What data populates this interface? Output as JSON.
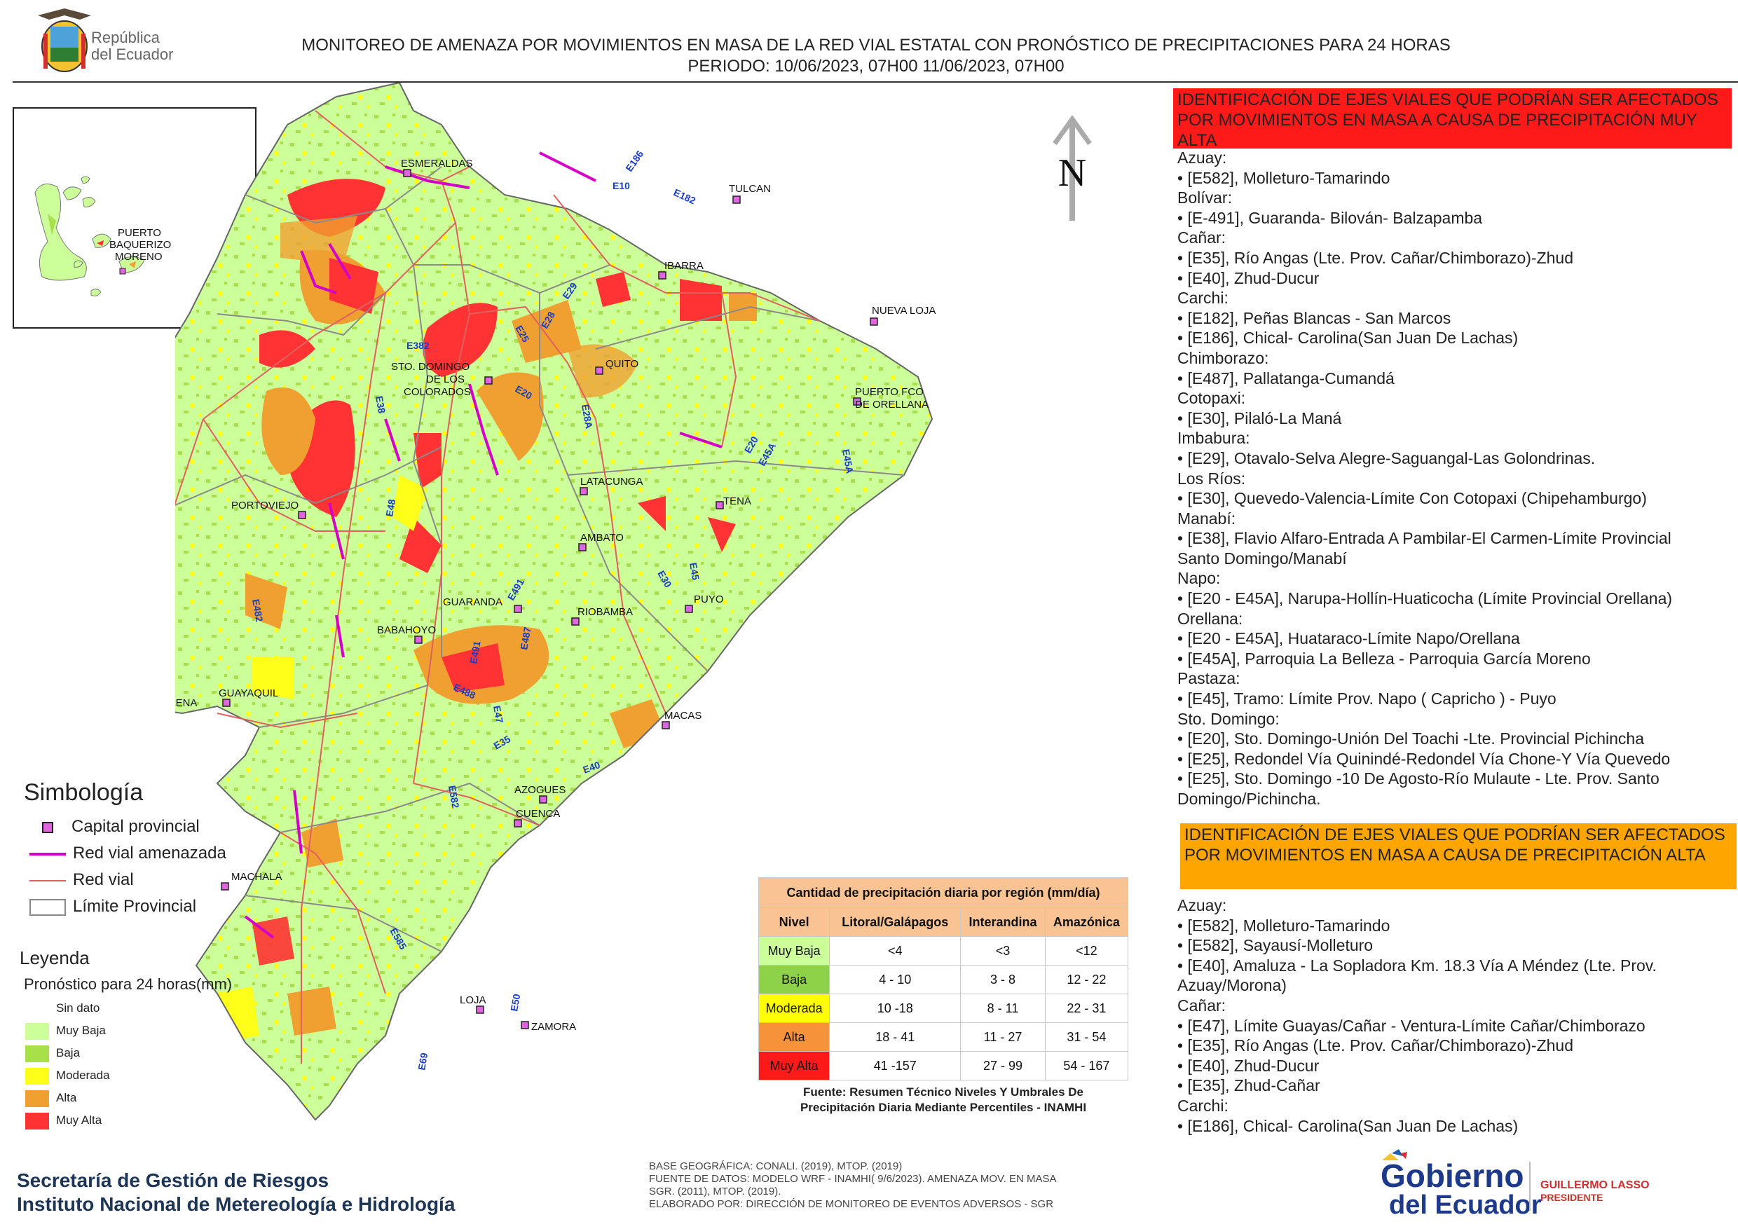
{
  "header": {
    "logo_text_line1": "República",
    "logo_text_line2": "del Ecuador",
    "title_line1": "MONITOREO DE AMENAZA POR MOVIMIENTOS EN MASA DE LA RED VIAL  ESTATAL  CON PRONÓSTICO  DE  PRECIPITACIONES PARA 24 HORAS",
    "title_line2": "PERIODO: 10/06/2023, 07H00 11/06/2023, 07H00"
  },
  "inset": {
    "label_line1": "PUERTO",
    "label_line2": "BAQUERIZO",
    "label_line3": "MORENO"
  },
  "north": "N",
  "cities": [
    "ESMERALDAS",
    "TULCAN",
    "IBARRA",
    "NUEVA LOJA",
    "QUITO",
    "STO. DOMINGO",
    "DE LOS",
    "COLORADOS",
    "PUERTO FCO",
    "DE ORELLANA",
    "LATACUNGA",
    "TENA",
    "PORTOVIEJO",
    "AMBATO",
    "PUYO",
    "GUARANDA",
    "RIOBAMBA",
    "BABAHOYO",
    "SANTA ELENA",
    "GUAYAQUIL",
    "MACAS",
    "AZOGUES",
    "CUENCA",
    "MACHALA",
    "LOJA",
    "ZAMORA"
  ],
  "roads": [
    "E10",
    "E182",
    "E186",
    "E29",
    "E25",
    "E28",
    "E382",
    "E20",
    "E28A",
    "E38",
    "E20",
    "E45A",
    "E45A",
    "E30",
    "E45",
    "E48",
    "E491",
    "E482",
    "E491",
    "E487",
    "E488",
    "E47",
    "E35",
    "E40",
    "E582",
    "E585",
    "E50",
    "E69"
  ],
  "red_panel": {
    "heading": "IDENTIFICACIÓN DE EJES VIALES QUE PODRÍAN SER AFECTADOS POR MOVIMIENTOS EN MASA A CAUSA DE PRECIPITACIÓN MUY ALTA",
    "lines": [
      "Azuay:",
      "• [E582], Molleturo-Tamarindo",
      "Bolívar:",
      "• [E-491], Guaranda- Bilován- Balzapamba",
      "Cañar:",
      "• [E35], Río Angas (Lte. Prov. Cañar/Chimborazo)-Zhud",
      "• [E40], Zhud-Ducur",
      "Carchi:",
      "• [E182], Peñas Blancas - San Marcos",
      "• [E186], Chical- Carolina(San Juan De Lachas)",
      "Chimborazo:",
      "• [E487], Pallatanga-Cumandá",
      "Cotopaxi:",
      "• [E30], Pilaló-La Maná",
      "Imbabura:",
      "• [E29], Otavalo-Selva Alegre-Saguangal-Las Golondrinas.",
      "Los Ríos:",
      "• [E30], Quevedo-Valencia-Límite Con Cotopaxi (Chipehamburgo)",
      "Manabí:",
      "• [E38], Flavio Alfaro-Entrada A Pambilar-El Carmen-Límite Provincial",
      "Santo Domingo/Manabí",
      "Napo:",
      "• [E20 - E45A], Narupa-Hollín-Huaticocha (Límite Provincial Orellana)",
      "Orellana:",
      "• [E20 - E45A], Huataraco-Límite Napo/Orellana",
      "• [E45A], Parroquia La Belleza - Parroquia García Moreno",
      "Pastaza:",
      "• [E45], Tramo: Límite Prov. Napo ( Capricho ) - Puyo",
      "Sto. Domingo:",
      "• [E20], Sto. Domingo-Unión Del Toachi -Lte. Provincial Pichincha",
      "• [E25], Redondel Vía Quinindé-Redondel Vía Chone-Y Vía Quevedo",
      "• [E25], Sto. Domingo -10 De Agosto-Río Mulaute - Lte. Prov. Santo",
      "Domingo/Pichincha."
    ]
  },
  "orange_panel": {
    "heading": "IDENTIFICACIÓN DE EJES VIALES QUE PODRÍAN SER AFECTADOS POR MOVIMIENTOS EN MASA A CAUSA DE PRECIPITACIÓN  ALTA",
    "lines": [
      "Azuay:",
      "• [E582], Molleturo-Tamarindo",
      "• [E582], Sayausí-Molleturo",
      "• [E40], Amaluza - La Sopladora Km. 18.3 Vía A Méndez (Lte. Prov.",
      "Azuay/Morona)",
      "Cañar:",
      "• [E47], Límite Guayas/Cañar - Ventura-Límite Cañar/Chimborazo",
      "• [E35], Río Angas (Lte. Prov. Cañar/Chimborazo)-Zhud",
      "• [E40], Zhud-Ducur",
      "• [E35], Zhud-Cañar",
      "Carchi:",
      "• [E186], Chical- Carolina(San Juan De Lachas)"
    ]
  },
  "simbologia": {
    "title": "Simbología",
    "items": [
      "Capital provincial",
      "Red vial amenazada",
      "Red vial",
      "Límite Provincial"
    ]
  },
  "leyenda": {
    "title": "Leyenda",
    "subtitle": "Pronóstico para 24 horas(mm)",
    "items": [
      {
        "label": "Sin dato",
        "color": "#ffffff"
      },
      {
        "label": "Muy Baja",
        "color": "#ccff99"
      },
      {
        "label": "Baja",
        "color": "#a8e04a"
      },
      {
        "label": "Moderada",
        "color": "#ffff1a"
      },
      {
        "label": "Alta",
        "color": "#f0a030"
      },
      {
        "label": "Muy Alta",
        "color": "#ff3333"
      }
    ]
  },
  "precip_table": {
    "caption": "Cantidad de precipitación diaria por región (mm/día)",
    "headers": [
      "Nivel",
      "Litoral/Galápagos",
      "Interandina",
      "Amazónica"
    ],
    "rows": [
      {
        "nivel": "Muy Baja",
        "color": "#ccff99",
        "c1": "<4",
        "c2": "<3",
        "c3": "<12"
      },
      {
        "nivel": "Baja",
        "color": "#8ed24a",
        "c1": "4 - 10",
        "c2": "3 - 8",
        "c3": "12 - 22"
      },
      {
        "nivel": "Moderada",
        "color": "#ffff00",
        "c1": "10 -18",
        "c2": "8 - 11",
        "c3": "22 - 31"
      },
      {
        "nivel": "Alta",
        "color": "#f5923a",
        "c1": "18 - 41",
        "c2": "11 - 27",
        "c3": "31 - 54"
      },
      {
        "nivel": "Muy Alta",
        "color": "#ff1a1a",
        "c1": "41 -157",
        "c2": "27 - 99",
        "c3": "54 - 167"
      }
    ],
    "source_line1": "Fuente: Resumen Técnico Niveles Y Umbrales De",
    "source_line2": "Precipitación Diaria Mediante Percentiles - INAMHI"
  },
  "credits": {
    "line1": "BASE GEOGRÁFICA: CONALI. (2019), MTOP. (2019)",
    "line2": "FUENTE DE DATOS: MODELO WRF - INAMHI( 9/6/2023).  AMENAZA MOV. EN MASA",
    "line3": "SGR. (2011), MTOP. (2019).",
    "line4": "ELABORADO POR: DIRECCIÓN DE MONITOREO DE EVENTOS ADVERSOS - SGR"
  },
  "footer": {
    "sgr_line1": "Secretaría de Gestión de Riesgos",
    "sgr_line2": "Instituto Nacional de Metereología e Hidrología",
    "gob_line1": "Gobierno",
    "gob_line2": "del Ecuador",
    "pres_line1": "GUILLERMO LASSO",
    "pres_line2": "PRESIDENTE"
  },
  "colors": {
    "muy_alta": "#ff2a2a",
    "alta": "#f0a030",
    "moderada": "#ffff1a",
    "baja": "#a8e04a",
    "muy_baja": "#ccff99",
    "road_threat": "#d400c8",
    "road": "#e06060",
    "boundary": "#888888"
  }
}
